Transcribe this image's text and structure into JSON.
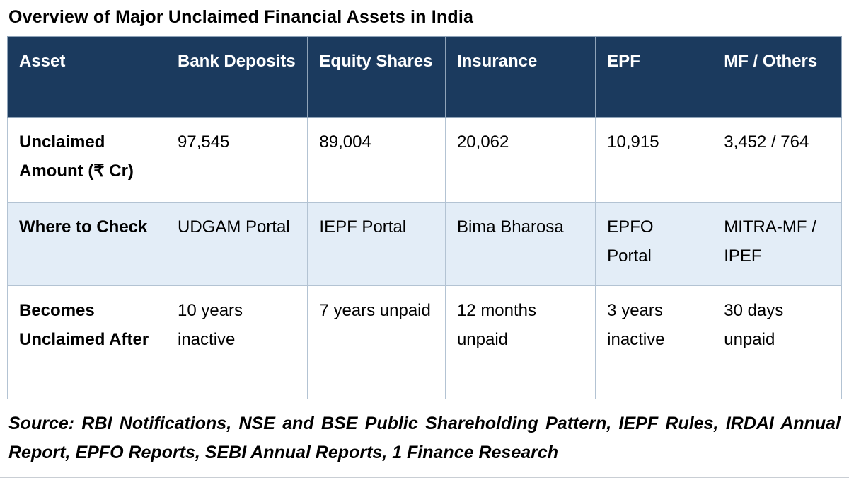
{
  "title": "Overview of Major Unclaimed Financial Assets in India",
  "chart_data": {
    "type": "table",
    "title": "Overview of Major Unclaimed Financial Assets in India",
    "columns": [
      "Asset",
      "Bank Deposits",
      "Equity Shares",
      "Insurance",
      "EPF",
      "MF / Others"
    ],
    "rows": [
      {
        "label": "Unclaimed Amount (₹ Cr)",
        "values": [
          "97,545",
          "89,004",
          "20,062",
          "10,915",
          "3,452 / 764"
        ]
      },
      {
        "label": "Where to Check",
        "values": [
          "UDGAM Portal",
          "IEPF Portal",
          "Bima Bharosa",
          "EPFO Portal",
          "MITRA-MF / IPEF"
        ]
      },
      {
        "label": "Becomes Unclaimed After",
        "values": [
          "10 years inactive",
          "7 years unpaid",
          "12 months unpaid",
          "3 years inactive",
          "30 days unpaid"
        ]
      }
    ],
    "source": "Source: RBI Notifications, NSE and BSE Public Shareholding Pattern, IEPF Rules, IRDAI Annual Report, EPFO Reports, SEBI Annual Reports, 1 Finance Research"
  },
  "colors": {
    "header_bg": "#1b3a5e",
    "header_text": "#ffffff",
    "alt_row_bg": "#e3edf7",
    "border": "#b3c3d3"
  }
}
